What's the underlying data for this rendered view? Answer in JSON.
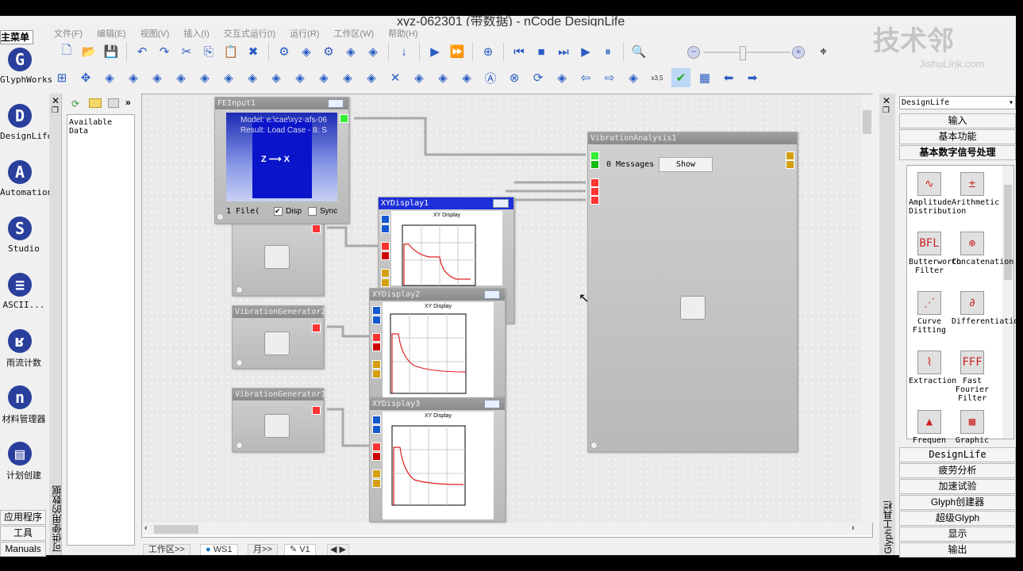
{
  "window": {
    "title": "xyz-062301 (带数据) - nCode DesignLife"
  },
  "menu": [
    "文件(F)",
    "编辑(E)",
    "视图(V)",
    "插入(I)",
    "交互式运行(I)",
    "运行(R)",
    "工作区(W)",
    "帮助(H)"
  ],
  "toolbar1": [
    "new-file-icon",
    "open-folder-icon",
    "save-icon",
    "|",
    "undo-icon",
    "redo-icon",
    "cut-icon",
    "copy-icon",
    "paste-icon",
    "delete-icon",
    "|",
    "settings-icon",
    "properties-icon",
    "gear-icon",
    "layout-icon",
    "clear-icon",
    "|",
    "down-arrow-icon",
    "|",
    "step-icon",
    "fast-forward-icon",
    "|",
    "add-icon",
    "|",
    "skip-back-icon",
    "stop-icon",
    "step-forward-icon",
    "play-icon",
    "pause-icon",
    "|",
    "zoom-100-icon"
  ],
  "toolbar2": [
    "fit-icon",
    "move-icon",
    "fit-x-icon",
    "fit-y-icon",
    "zoom-in-x-icon",
    "zoom-out-x-icon",
    "zoom-in-y-icon",
    "zoom-out-y-icon",
    "zoom-reset-icon",
    "scale-y-icon",
    "x-decimal-icon",
    "y-decimal-icon",
    "y-axis-icon",
    "overlay-icon",
    "cross-icon",
    "stack-icon",
    "scatter-icon",
    "dots-icon",
    "all-icon",
    "no-all-icon",
    "refresh-icon",
    "mouse-icon",
    "arrow-left-icon",
    "arrow-right-icon",
    "cursor-value-icon",
    "x-value-icon",
    "check-toggle-icon",
    "grid-icon",
    "back-icon",
    "forward-icon"
  ],
  "toolbar2_text": {
    "x_value": "x3,5"
  },
  "watermark": {
    "name": "技术邻",
    "url": "JishuLink.com"
  },
  "main_menu": {
    "title": "主菜单",
    "items": [
      {
        "label": "GlyphWorks",
        "icon": "G"
      },
      {
        "label": "DesignLife",
        "icon": "D"
      },
      {
        "label": "Automation",
        "icon": "A"
      },
      {
        "label": "Studio",
        "icon": "S"
      },
      {
        "label": "ASCII...",
        "icon": "≡"
      },
      {
        "label": "雨流计数",
        "icon": "ʁ"
      },
      {
        "label": "材料管理器",
        "icon": "n"
      },
      {
        "label": "计划创建",
        "icon": "▤"
      }
    ],
    "buttons": [
      "应用程序",
      "工具",
      "Manuals"
    ]
  },
  "data_panel": {
    "strip_label": "可供使用的数据",
    "header": "Available Data"
  },
  "nodes": {
    "fe_input": {
      "title": "FEInput1",
      "model": "Model:   e:\\cae\\xyz-afs-06",
      "result": "Result:  Load Case - 8: S",
      "files": "1 File(",
      "display": "Disp",
      "sync": "Sync",
      "display_checked": true,
      "sync_checked": false
    },
    "gen2": "VibrationGenerator2",
    "gen3": "VibrationGenerator3",
    "xy1": "XYDisplay1",
    "xy2": "XYDisplay2",
    "xy3": "XYDisplay3",
    "plot_title": "XY Display",
    "analysis": {
      "title": "VibrationAnalysis1",
      "messages": "0 Messages",
      "show": "Show"
    }
  },
  "right_panel": {
    "strip_label": "Glyph工具栏",
    "dropdown": "DesignLife",
    "top_sections": [
      "输入",
      "基本功能",
      "基本数字信号处理"
    ],
    "glyphs": [
      {
        "label": "Amplitude Distribution",
        "icon": "∿"
      },
      {
        "label": "Arithmetic",
        "icon": "±"
      },
      {
        "label": "Butterworth Filter",
        "icon": "BFL"
      },
      {
        "label": "Concatenation",
        "icon": "⊕"
      },
      {
        "label": "Curve Fitting",
        "icon": "⋰"
      },
      {
        "label": "Differentiation",
        "icon": "∂"
      },
      {
        "label": "Extraction",
        "icon": "⌇"
      },
      {
        "label": "Fast Fourier Filter",
        "icon": "FFF"
      },
      {
        "label": "Frequen",
        "icon": "▲"
      },
      {
        "label": "Graphic",
        "icon": "▦"
      }
    ],
    "bottom_sections": [
      "DesignLife",
      "疲劳分析",
      "加速试验",
      "Glyph创建器",
      "超级Glyph",
      "显示",
      "输出"
    ]
  },
  "tabs": {
    "workspace": "工作区>>",
    "ws1": "WS1",
    "page": "月>>",
    "v1": "V1"
  }
}
